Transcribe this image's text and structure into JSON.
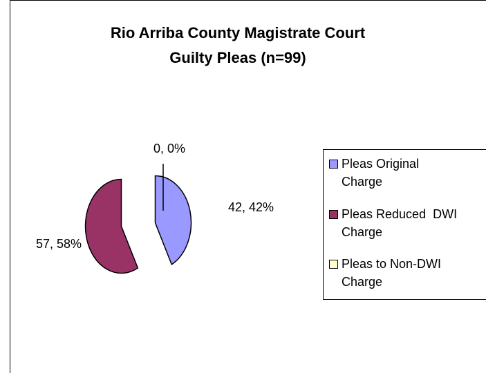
{
  "chart_data": {
    "type": "pie",
    "title": [
      "Rio Arriba County Magistrate Court",
      "Guilty Pleas (n=99)"
    ],
    "slices": [
      {
        "name": "Pleas Original Charge",
        "value": 42,
        "percent": "42%",
        "label": "42, 42%",
        "color": "#9999ff"
      },
      {
        "name": "Pleas Reduced  DWI Charge",
        "value": 57,
        "percent": "58%",
        "label": "57, 58%",
        "color": "#993366"
      },
      {
        "name": "Pleas to Non-DWI Charge",
        "value": 0,
        "percent": "0%",
        "label": "0, 0%",
        "color": "#ffffcc"
      }
    ],
    "legend_position": "right"
  },
  "legend": [
    {
      "line1": "Pleas Original",
      "line2": "Charge"
    },
    {
      "line1": "Pleas Reduced  DWI",
      "line2": "Charge"
    },
    {
      "line1": "Pleas to Non-DWI",
      "line2": "Charge"
    }
  ]
}
